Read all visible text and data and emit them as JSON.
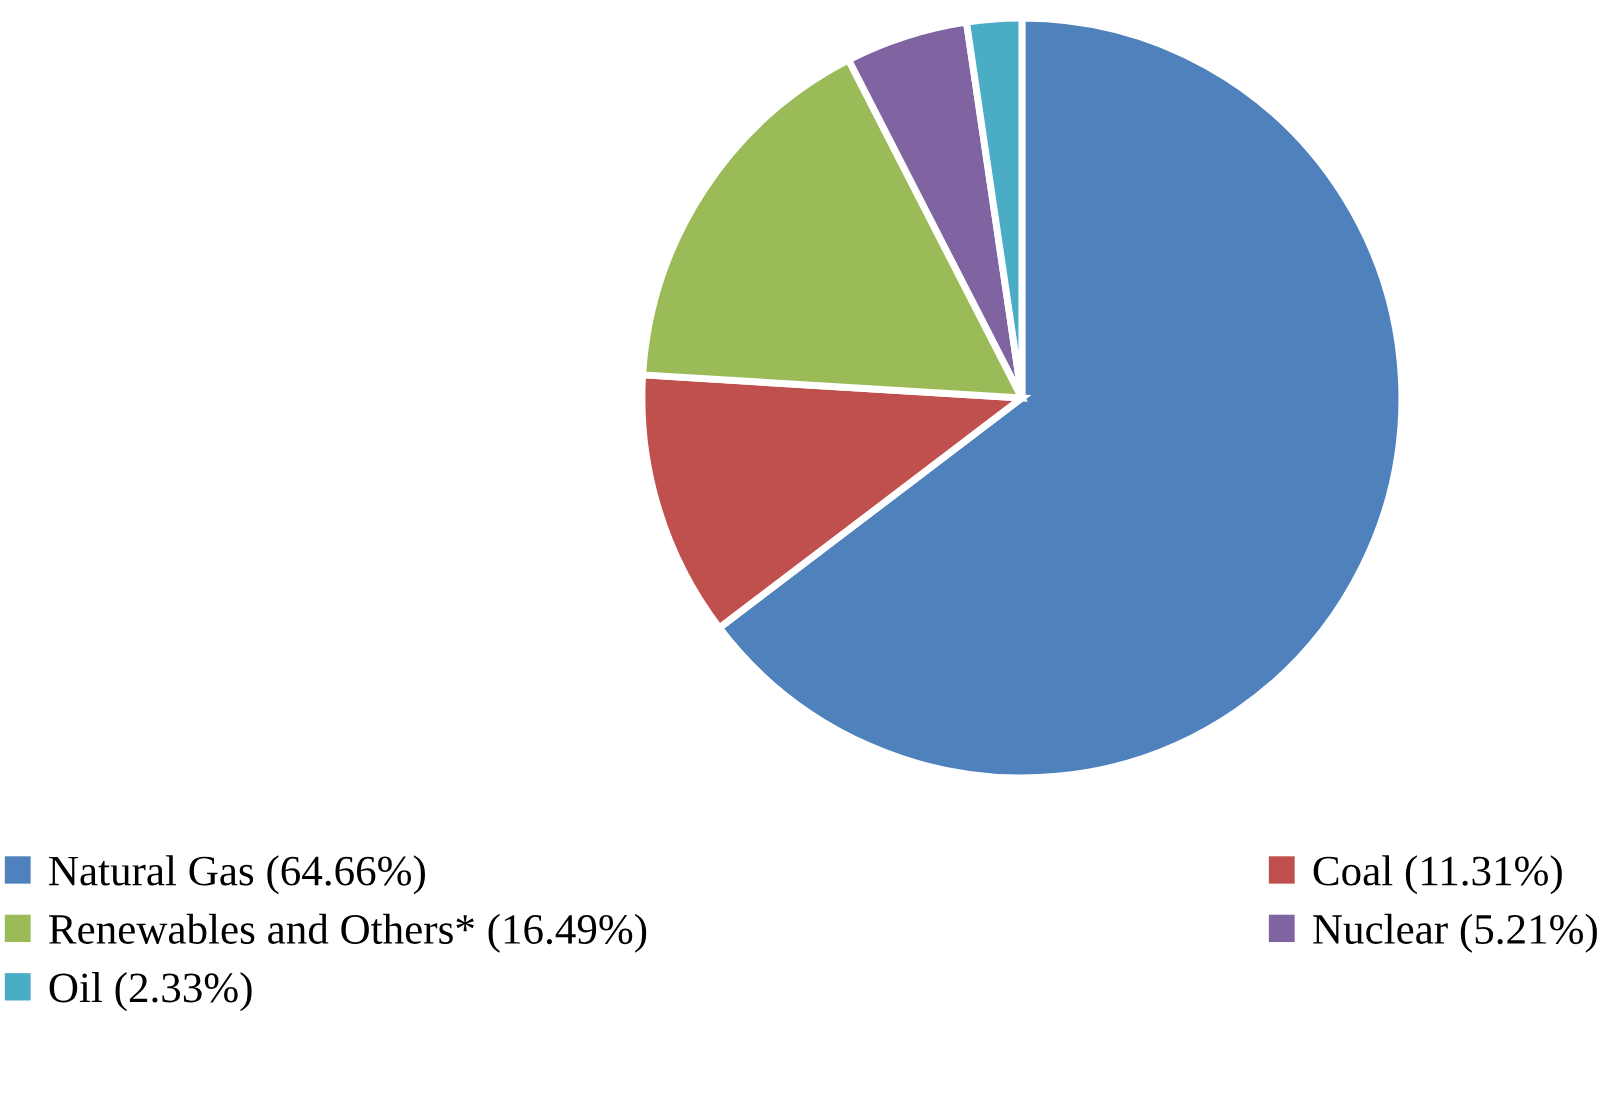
{
  "chart_data": {
    "type": "pie",
    "categories": [
      "Natural Gas (64.66%)",
      "Coal (11.31%)",
      "Renewables and Others* (16.49%)",
      "Nuclear (5.21%)",
      "Oil (2.33%)"
    ],
    "values": [
      64.66,
      11.31,
      16.49,
      5.21,
      2.33
    ],
    "colors": [
      "#4f81bd",
      "#c0504d",
      "#9bbb59",
      "#8064a2",
      "#4bacc6"
    ],
    "legend": "bottom"
  }
}
